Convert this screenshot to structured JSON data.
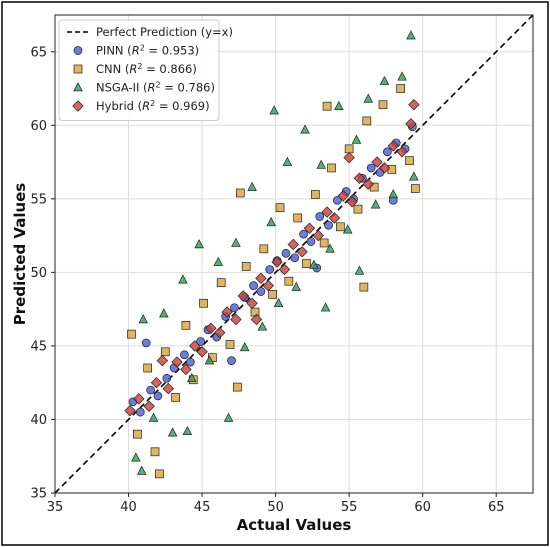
{
  "chart_data": {
    "type": "scatter",
    "title": "",
    "xlabel": "Actual Values",
    "ylabel": "Predicted Values",
    "xlim": [
      35,
      67.5
    ],
    "ylim": [
      35,
      67.5
    ],
    "xticks": [
      35,
      40,
      45,
      50,
      55,
      60,
      65
    ],
    "yticks": [
      35,
      40,
      45,
      50,
      55,
      60,
      65
    ],
    "grid": true,
    "legend_position": "top-left",
    "reference_line": {
      "name": "Perfect Prediction (y=x)",
      "from": [
        35,
        35
      ],
      "to": [
        67.5,
        67.5
      ],
      "color": "#000000",
      "style": "dashed"
    },
    "series": [
      {
        "name": "PINN",
        "r2": "0.953",
        "marker": "circle",
        "color": "#4a5fd6",
        "points": [
          [
            40.3,
            41.2
          ],
          [
            40.8,
            40.5
          ],
          [
            41.5,
            42.0
          ],
          [
            42.0,
            41.6
          ],
          [
            42.6,
            42.8
          ],
          [
            43.1,
            43.5
          ],
          [
            43.8,
            44.4
          ],
          [
            44.2,
            43.9
          ],
          [
            44.9,
            45.3
          ],
          [
            45.4,
            46.1
          ],
          [
            46.0,
            45.6
          ],
          [
            46.6,
            47.0
          ],
          [
            47.2,
            47.6
          ],
          [
            47.9,
            48.3
          ],
          [
            48.5,
            49.1
          ],
          [
            49.0,
            48.7
          ],
          [
            49.6,
            50.2
          ],
          [
            50.1,
            50.8
          ],
          [
            50.7,
            51.3
          ],
          [
            51.3,
            51.0
          ],
          [
            51.9,
            52.6
          ],
          [
            52.4,
            52.1
          ],
          [
            53.0,
            53.8
          ],
          [
            53.6,
            53.2
          ],
          [
            54.2,
            54.9
          ],
          [
            54.8,
            55.5
          ],
          [
            55.3,
            55.0
          ],
          [
            55.9,
            56.4
          ],
          [
            56.5,
            57.1
          ],
          [
            57.1,
            56.8
          ],
          [
            57.6,
            58.2
          ],
          [
            58.2,
            58.8
          ],
          [
            58.8,
            58.4
          ],
          [
            59.3,
            59.9
          ],
          [
            41.2,
            45.2
          ],
          [
            47.0,
            44.0
          ],
          [
            52.8,
            50.3
          ],
          [
            58.0,
            54.9
          ]
        ]
      },
      {
        "name": "CNN",
        "r2": "0.866",
        "marker": "square",
        "color": "#d9a53a",
        "points": [
          [
            40.2,
            45.8
          ],
          [
            40.6,
            39.0
          ],
          [
            41.3,
            43.5
          ],
          [
            42.1,
            36.3
          ],
          [
            42.5,
            44.6
          ],
          [
            43.2,
            41.5
          ],
          [
            43.9,
            46.4
          ],
          [
            44.4,
            42.7
          ],
          [
            45.1,
            47.9
          ],
          [
            45.7,
            44.2
          ],
          [
            46.3,
            49.3
          ],
          [
            46.9,
            45.1
          ],
          [
            47.4,
            42.2
          ],
          [
            48.0,
            50.4
          ],
          [
            48.6,
            47.3
          ],
          [
            49.2,
            51.6
          ],
          [
            49.8,
            48.5
          ],
          [
            50.3,
            54.4
          ],
          [
            50.9,
            49.4
          ],
          [
            51.5,
            53.7
          ],
          [
            52.1,
            50.6
          ],
          [
            52.7,
            55.3
          ],
          [
            53.3,
            52.0
          ],
          [
            53.8,
            57.1
          ],
          [
            54.4,
            53.1
          ],
          [
            55.0,
            58.4
          ],
          [
            55.6,
            54.3
          ],
          [
            56.2,
            60.3
          ],
          [
            56.7,
            55.8
          ],
          [
            57.3,
            61.4
          ],
          [
            57.9,
            57.0
          ],
          [
            58.5,
            62.5
          ],
          [
            59.1,
            57.6
          ],
          [
            59.5,
            55.7
          ],
          [
            41.8,
            37.8
          ],
          [
            53.5,
            61.3
          ],
          [
            56.0,
            49.0
          ],
          [
            47.6,
            55.4
          ]
        ]
      },
      {
        "name": "NSGA-II",
        "r2": "0.786",
        "marker": "triangle",
        "color": "#2ca05a",
        "points": [
          [
            40.5,
            37.4
          ],
          [
            41.0,
            46.8
          ],
          [
            41.7,
            40.1
          ],
          [
            42.4,
            47.2
          ],
          [
            43.0,
            39.1
          ],
          [
            43.7,
            49.5
          ],
          [
            44.3,
            42.8
          ],
          [
            44.8,
            51.9
          ],
          [
            45.5,
            44.0
          ],
          [
            46.1,
            50.7
          ],
          [
            46.8,
            40.1
          ],
          [
            47.3,
            52.0
          ],
          [
            47.9,
            44.9
          ],
          [
            48.4,
            55.8
          ],
          [
            49.1,
            46.3
          ],
          [
            49.7,
            53.4
          ],
          [
            50.2,
            47.9
          ],
          [
            50.8,
            57.5
          ],
          [
            51.4,
            49.0
          ],
          [
            52.0,
            59.7
          ],
          [
            52.6,
            50.5
          ],
          [
            53.1,
            57.3
          ],
          [
            53.7,
            51.6
          ],
          [
            54.3,
            61.3
          ],
          [
            54.9,
            52.9
          ],
          [
            55.5,
            59.0
          ],
          [
            55.7,
            50.1
          ],
          [
            56.3,
            61.8
          ],
          [
            56.8,
            54.6
          ],
          [
            57.4,
            63.0
          ],
          [
            58.0,
            55.3
          ],
          [
            58.6,
            63.3
          ],
          [
            59.2,
            66.1
          ],
          [
            59.4,
            56.5
          ],
          [
            40.9,
            36.5
          ],
          [
            44.0,
            39.2
          ],
          [
            49.9,
            61.0
          ],
          [
            53.4,
            47.6
          ]
        ]
      },
      {
        "name": "Hybrid",
        "r2": "0.969",
        "marker": "diamond",
        "color": "#c9423a",
        "points": [
          [
            40.1,
            40.6
          ],
          [
            40.7,
            41.4
          ],
          [
            41.4,
            40.9
          ],
          [
            41.9,
            42.5
          ],
          [
            42.7,
            42.1
          ],
          [
            43.3,
            43.9
          ],
          [
            43.9,
            43.4
          ],
          [
            44.5,
            45.0
          ],
          [
            45.0,
            44.6
          ],
          [
            45.6,
            46.2
          ],
          [
            46.2,
            45.9
          ],
          [
            46.7,
            47.3
          ],
          [
            47.3,
            46.8
          ],
          [
            47.8,
            48.4
          ],
          [
            48.4,
            47.9
          ],
          [
            49.0,
            49.6
          ],
          [
            49.5,
            49.1
          ],
          [
            50.1,
            50.7
          ],
          [
            50.6,
            50.2
          ],
          [
            51.2,
            51.9
          ],
          [
            51.8,
            51.4
          ],
          [
            52.3,
            53.0
          ],
          [
            52.9,
            52.5
          ],
          [
            53.5,
            54.1
          ],
          [
            54.0,
            53.7
          ],
          [
            54.6,
            55.2
          ],
          [
            55.2,
            54.8
          ],
          [
            55.7,
            56.4
          ],
          [
            56.3,
            56.0
          ],
          [
            56.9,
            57.5
          ],
          [
            57.4,
            57.1
          ],
          [
            58.0,
            58.6
          ],
          [
            58.6,
            58.2
          ],
          [
            59.2,
            60.1
          ],
          [
            59.4,
            61.4
          ],
          [
            42.3,
            44.0
          ],
          [
            48.7,
            46.8
          ],
          [
            55.0,
            57.8
          ]
        ]
      }
    ]
  }
}
